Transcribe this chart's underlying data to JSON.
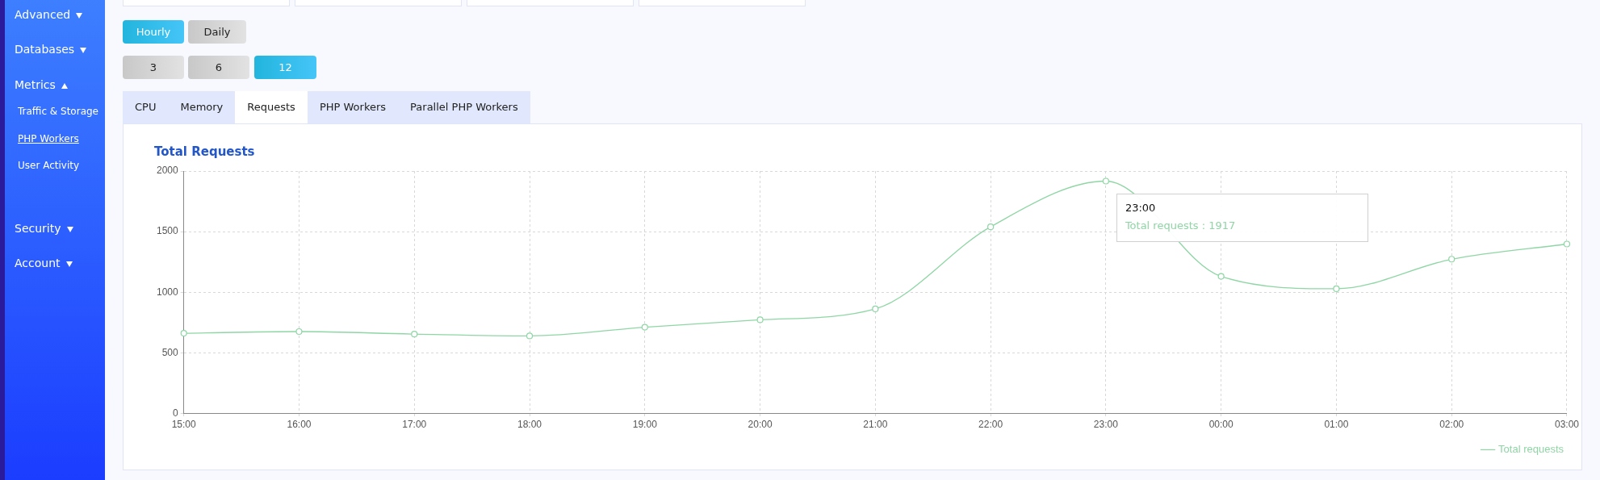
{
  "chart_data": {
    "type": "line",
    "title": "Total Requests",
    "categories": [
      "15:00",
      "16:00",
      "17:00",
      "18:00",
      "19:00",
      "20:00",
      "21:00",
      "22:00",
      "23:00",
      "00:00",
      "01:00",
      "02:00",
      "03:00"
    ],
    "series": [
      {
        "name": "Total requests",
        "color": "#8fd6a5",
        "values": [
          662,
          676,
          655,
          640,
          712,
          773,
          863,
          1540,
          1917,
          1131,
          1029,
          1273,
          1398
        ]
      }
    ],
    "ylim": [
      0,
      2000
    ],
    "yticks": [
      0,
      500,
      1000,
      1500,
      2000
    ],
    "grid": true,
    "legend": "bottom right",
    "marker": "circle",
    "line_style": "solid",
    "annotations": [
      "Advanced",
      "Databases",
      "Metrics",
      "Traffic & Storage",
      "PHP Workers",
      "User Activity",
      "Security",
      "Account",
      "Hourly",
      "Daily",
      "3",
      "6",
      "12",
      "CPU",
      "Memory",
      "Requests",
      "PHP Workers",
      "Parallel PHP Workers",
      "23:00",
      "Total requests : 1917"
    ]
  }
}
